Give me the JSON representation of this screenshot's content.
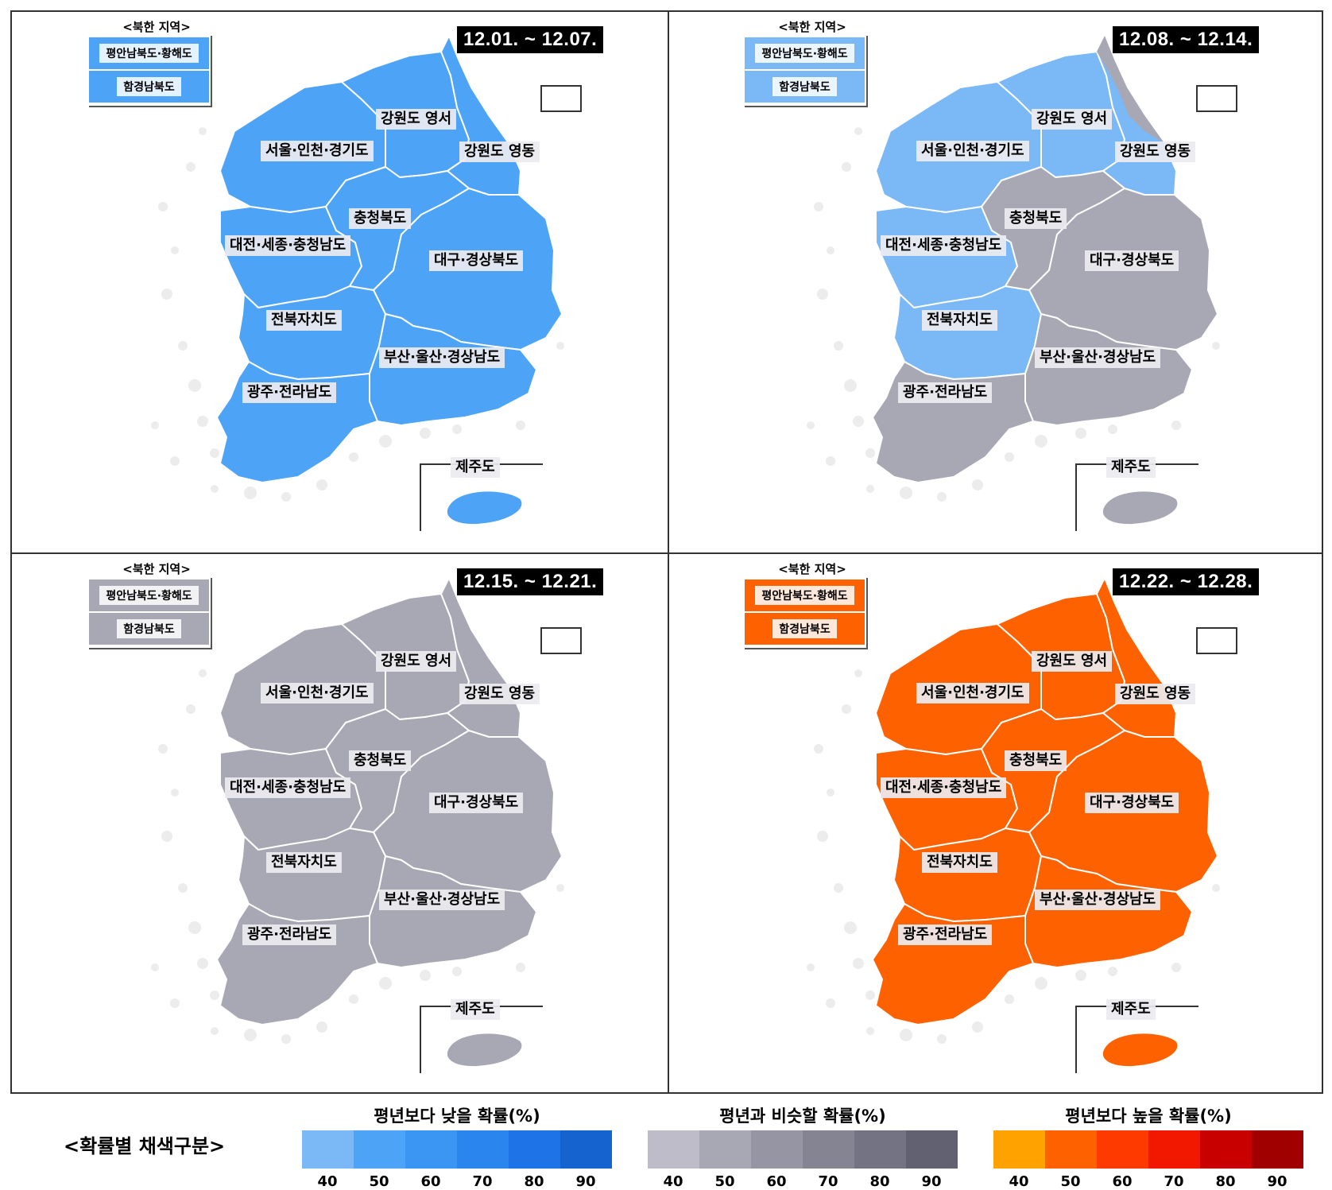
{
  "north_korea_title": "<북한 지역>",
  "north_korea_regions": [
    "평안남북도·황해도",
    "함경남북도"
  ],
  "region_labels": {
    "gangwon_yeongseo": "강원도 영서",
    "seoul": "서울·인천·경기도",
    "gangwon_yeongdong": "강원도 영동",
    "chungbuk": "충청북도",
    "chungnam": "대전·세종·충청남도",
    "gyeongbuk": "대구·경상북도",
    "jeonbuk": "전북자치도",
    "gyeongnam": "부산·울산·경상남도",
    "jeonnam": "광주·전라남도",
    "jeju": "제주도"
  },
  "panels": [
    {
      "period": "12.01. ~ 12.07.",
      "colors": {
        "gangwon_yeongseo": "#4da3f5",
        "seoul": "#4da3f5",
        "gangwon_yeongdong": "#4da3f5",
        "chungbuk": "#4da3f5",
        "chungnam": "#4da3f5",
        "gyeongbuk": "#4da3f5",
        "jeonbuk": "#4da3f5",
        "gyeongnam": "#4da3f5",
        "jeonnam": "#4da3f5",
        "jeju": "#4da3f5",
        "nk1": "#4da3f5",
        "nk2": "#4da3f5"
      }
    },
    {
      "period": "12.08. ~ 12.14.",
      "colors": {
        "gangwon_yeongseo": "#7ab8f6",
        "seoul": "#7ab8f6",
        "gangwon_yeongdong": "#7ab8f6",
        "chungbuk": "#a8a7b4",
        "chungnam": "#7ab8f6",
        "gyeongbuk": "#a8a7b4",
        "jeonbuk": "#7ab8f6",
        "gyeongnam": "#a8a7b4",
        "jeonnam": "#a8a7b4",
        "jeju": "#a8a7b4",
        "nk1": "#7ab8f6",
        "nk2": "#7ab8f6",
        "northeast": "#a8a7b4"
      }
    },
    {
      "period": "12.15. ~ 12.21.",
      "colors": {
        "gangwon_yeongseo": "#a8a7b4",
        "seoul": "#a8a7b4",
        "gangwon_yeongdong": "#a8a7b4",
        "chungbuk": "#a8a7b4",
        "chungnam": "#a8a7b4",
        "gyeongbuk": "#a8a7b4",
        "jeonbuk": "#a8a7b4",
        "gyeongnam": "#a8a7b4",
        "jeonnam": "#a8a7b4",
        "jeju": "#a8a7b4",
        "nk1": "#a8a7b4",
        "nk2": "#a8a7b4"
      }
    },
    {
      "period": "12.22. ~ 12.28.",
      "colors": {
        "gangwon_yeongseo": "#fe6100",
        "seoul": "#fe6100",
        "gangwon_yeongdong": "#fe6100",
        "chungbuk": "#fe6100",
        "chungnam": "#fe6100",
        "gyeongbuk": "#fe6100",
        "jeonbuk": "#fe6100",
        "gyeongnam": "#fe6100",
        "jeonnam": "#fe6100",
        "jeju": "#fe6100",
        "nk1": "#fe6100",
        "nk2": "#fe6100"
      }
    }
  ],
  "legend": {
    "title": "<확률별 채색구분>",
    "groups": [
      {
        "title": "평년보다 낮을 확률(%)",
        "colors": [
          "#7ab8f6",
          "#4da3f5",
          "#3a96f2",
          "#2a86ee",
          "#1e73e6",
          "#1463cf"
        ]
      },
      {
        "title": "평년과 비슷할 확률(%)",
        "colors": [
          "#bdbcc8",
          "#a8a7b4",
          "#9695a3",
          "#858493",
          "#747383",
          "#626172"
        ]
      },
      {
        "title": "평년보다 높을 확률(%)",
        "colors": [
          "#ffa200",
          "#fe6100",
          "#ff3a00",
          "#f21800",
          "#c80000",
          "#a00000"
        ]
      }
    ],
    "ticks": [
      "40",
      "50",
      "60",
      "70",
      "80",
      "90"
    ]
  }
}
